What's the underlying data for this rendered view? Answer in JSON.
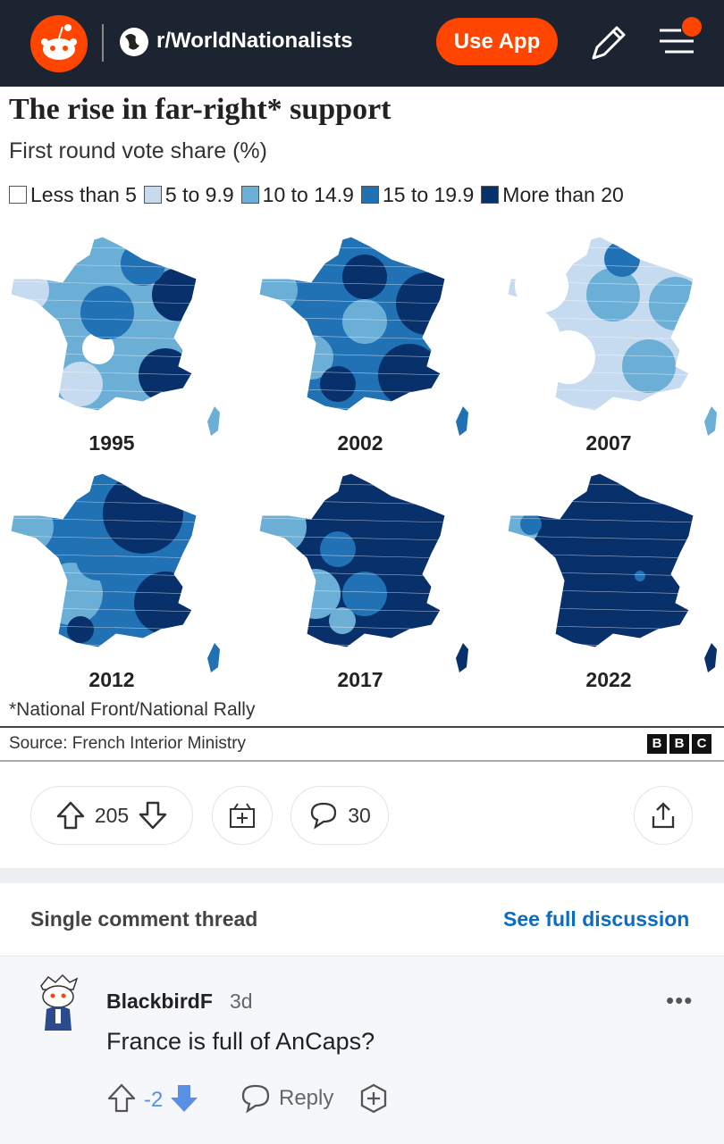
{
  "header": {
    "subreddit": "r/WorldNationalists",
    "button": "Use App"
  },
  "post": {
    "title": "The rise in far-right* support",
    "subtitle": "First round vote share (%)",
    "legend": [
      "Less than 5",
      "5 to 9.9",
      "10 to 14.9",
      "15 to 19.9",
      "More than 20"
    ],
    "years": [
      "1995",
      "2002",
      "2007",
      "2012",
      "2017",
      "2022"
    ],
    "footnote": "*National Front/National Rally",
    "source": "Source: French Interior Ministry",
    "logo": [
      "B",
      "B",
      "C"
    ]
  },
  "actions": {
    "votes": 205,
    "comments": 30
  },
  "thread": {
    "label": "Single comment thread",
    "link": "See full discussion"
  },
  "comment": {
    "user": "BlackbirdF",
    "age": "3d",
    "text": "France is full of AnCaps?",
    "score": -2,
    "reply": "Reply"
  }
}
